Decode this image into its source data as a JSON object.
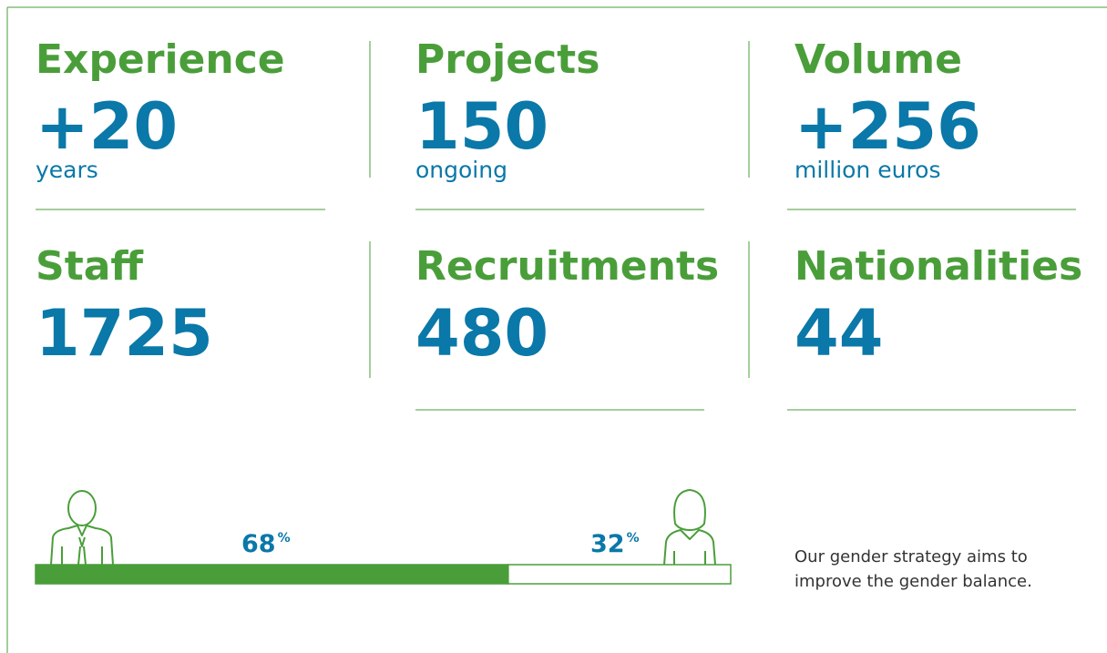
{
  "stats": [
    {
      "title": "Experience",
      "value": "+20",
      "unit": "years"
    },
    {
      "title": "Projects",
      "value": "150",
      "unit": "ongoing"
    },
    {
      "title": "Volume",
      "value": "+256",
      "unit": "million euros"
    },
    {
      "title": "Staff",
      "value": "1725"
    },
    {
      "title": "Recruitments",
      "value": "480"
    },
    {
      "title": "Nationalities",
      "value": "44"
    }
  ],
  "gender": {
    "segments": [
      {
        "value": 68,
        "unit": "%",
        "color": "#4a9e3a"
      },
      {
        "value": 32,
        "unit": "%",
        "color": "#ffffff"
      }
    ],
    "note": [
      "Our gender strategy aims to",
      "improve the gender balance."
    ]
  }
}
